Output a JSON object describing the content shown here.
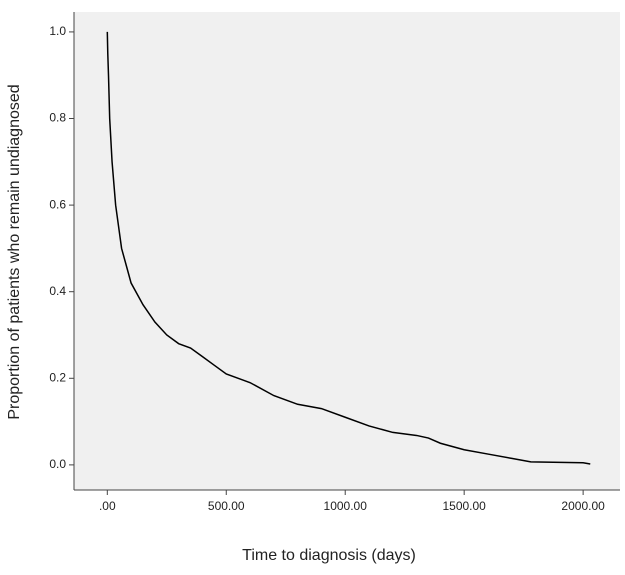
{
  "chart_data": {
    "type": "line",
    "x_label": "Time to diagnosis (days)",
    "y_label": "Proportion of patients who remain undiagnosed",
    "x": [
      0,
      2,
      5,
      10,
      20,
      35,
      60,
      100,
      150,
      200,
      250,
      300,
      350,
      400,
      450,
      500,
      600,
      700,
      800,
      900,
      1000,
      1100,
      1200,
      1300,
      1350,
      1400,
      1500,
      1600,
      1700,
      1780,
      2000,
      2030
    ],
    "series": [
      {
        "color": "#000000",
        "values": [
          1.0,
          0.95,
          0.9,
          0.8,
          0.7,
          0.6,
          0.5,
          0.42,
          0.37,
          0.33,
          0.3,
          0.28,
          0.27,
          0.25,
          0.23,
          0.21,
          0.19,
          0.16,
          0.14,
          0.13,
          0.11,
          0.09,
          0.075,
          0.068,
          0.062,
          0.05,
          0.035,
          0.025,
          0.015,
          0.007,
          0.005,
          0.002
        ]
      }
    ],
    "xlim": [
      -140,
      2155
    ],
    "ylim": [
      -0.058,
      1.046
    ],
    "xticks": [
      {
        "value": 0,
        "label": ".00"
      },
      {
        "value": 500,
        "label": "500.00"
      },
      {
        "value": 1000,
        "label": "1000.00"
      },
      {
        "value": 1500,
        "label": "1500.00"
      },
      {
        "value": 2000,
        "label": "2000.00"
      }
    ],
    "yticks": [
      {
        "value": 0,
        "label": "0.0"
      },
      0.2,
      0.4,
      0.6,
      0.8,
      {
        "value": 1,
        "label": "1.0"
      }
    ],
    "plot_background": "#f0f0f0"
  }
}
